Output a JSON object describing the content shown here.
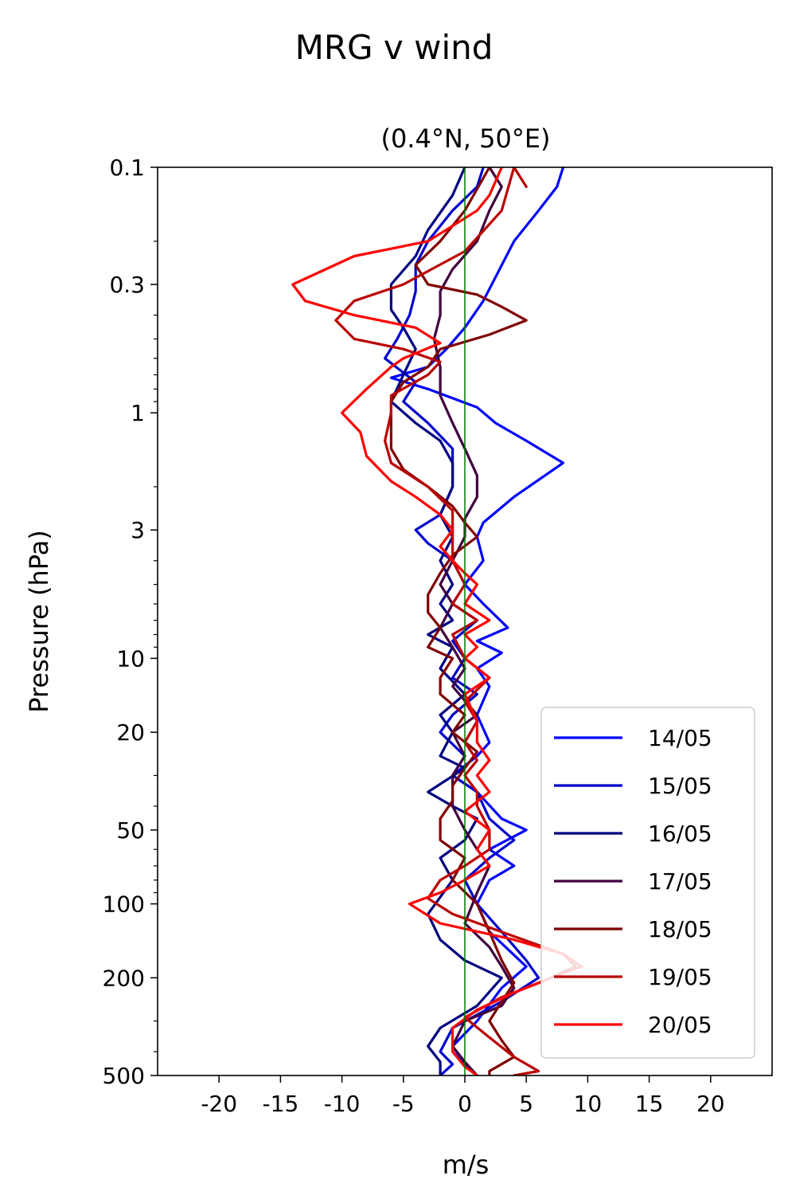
{
  "chart_data": {
    "type": "line",
    "title": "MRG v wind",
    "subtitle": "(0.4°N, 50°E)",
    "xlabel": "m/s",
    "ylabel": "Pressure (hPa)",
    "xlim": [
      -25,
      25
    ],
    "ylim": [
      500,
      0.1
    ],
    "yscale": "log",
    "x_ticks": [
      -20,
      -15,
      -10,
      -5,
      0,
      5,
      10,
      15,
      20
    ],
    "x_tick_labels": [
      "-20",
      "-15",
      "-10",
      "-5",
      "0",
      "5",
      "10",
      "15",
      "20"
    ],
    "y_ticks": [
      0.1,
      0.3,
      1,
      3,
      10,
      20,
      50,
      100,
      200,
      500
    ],
    "y_tick_labels": [
      "0.1",
      "0.3",
      "1",
      "3",
      "10",
      "20",
      "50",
      "100",
      "200",
      "500"
    ],
    "zero_line": {
      "x": 0,
      "color": "#007a00"
    },
    "grid": false,
    "legend_position": "lower-right",
    "series": [
      {
        "name": "14/05",
        "color": "#0000ff",
        "points": [
          [
            8,
            0.1
          ],
          [
            7.5,
            0.12
          ],
          [
            6,
            0.15
          ],
          [
            4,
            0.2
          ],
          [
            2.5,
            0.28
          ],
          [
            1.5,
            0.35
          ],
          [
            0,
            0.45
          ],
          [
            -1.5,
            0.55
          ],
          [
            -3,
            0.65
          ],
          [
            -6,
            0.72
          ],
          [
            -3,
            0.8
          ],
          [
            1,
            0.95
          ],
          [
            2.5,
            1.1
          ],
          [
            5,
            1.3
          ],
          [
            8,
            1.6
          ],
          [
            4,
            2.2
          ],
          [
            1.5,
            2.8
          ],
          [
            1,
            3.2
          ],
          [
            1.5,
            4
          ],
          [
            0,
            5
          ],
          [
            1.5,
            6
          ],
          [
            3.5,
            7.5
          ],
          [
            1,
            8.5
          ],
          [
            3,
            9.5
          ],
          [
            1,
            11
          ],
          [
            2,
            13
          ],
          [
            1,
            17
          ],
          [
            2,
            22
          ],
          [
            1,
            25
          ],
          [
            -1,
            30
          ],
          [
            1,
            35
          ],
          [
            3,
            45
          ],
          [
            5,
            50
          ],
          [
            2,
            60
          ],
          [
            4,
            70
          ],
          [
            2,
            80
          ],
          [
            1,
            100
          ],
          [
            2,
            130
          ],
          [
            5,
            180
          ],
          [
            3,
            220
          ],
          [
            1,
            300
          ],
          [
            -1,
            380
          ],
          [
            0,
            450
          ],
          [
            1,
            500
          ]
        ]
      },
      {
        "name": "15/05",
        "color": "#0000cc",
        "points": [
          [
            1.5,
            0.1
          ],
          [
            1,
            0.12
          ],
          [
            -1,
            0.15
          ],
          [
            -3,
            0.2
          ],
          [
            -4,
            0.25
          ],
          [
            -4,
            0.32
          ],
          [
            -4.5,
            0.4
          ],
          [
            -5.5,
            0.5
          ],
          [
            -6.5,
            0.6
          ],
          [
            -4,
            0.75
          ],
          [
            -5,
            0.9
          ],
          [
            -3,
            1.1
          ],
          [
            -1,
            1.4
          ],
          [
            -1,
            2
          ],
          [
            -2,
            2.6
          ],
          [
            -4,
            3
          ],
          [
            -3,
            3.4
          ],
          [
            -1,
            4
          ],
          [
            0,
            5
          ],
          [
            -1,
            6
          ],
          [
            1,
            7
          ],
          [
            -1,
            8.5
          ],
          [
            0,
            10
          ],
          [
            -1,
            12
          ],
          [
            1,
            14
          ],
          [
            -1,
            17
          ],
          [
            -2,
            20
          ],
          [
            0,
            25
          ],
          [
            -1,
            30
          ],
          [
            1,
            35
          ],
          [
            2,
            45
          ],
          [
            4,
            55
          ],
          [
            2,
            65
          ],
          [
            0,
            80
          ],
          [
            1,
            100
          ],
          [
            3,
            130
          ],
          [
            5,
            170
          ],
          [
            6,
            200
          ],
          [
            3,
            250
          ],
          [
            -1,
            320
          ],
          [
            -2,
            400
          ],
          [
            -1,
            450
          ],
          [
            -2,
            500
          ]
        ]
      },
      {
        "name": "16/05",
        "color": "#000080",
        "points": [
          [
            0,
            0.1
          ],
          [
            -1,
            0.13
          ],
          [
            -3,
            0.18
          ],
          [
            -4,
            0.23
          ],
          [
            -6,
            0.3
          ],
          [
            -6,
            0.38
          ],
          [
            -5,
            0.45
          ],
          [
            -4,
            0.55
          ],
          [
            -5,
            0.7
          ],
          [
            -6,
            0.9
          ],
          [
            -4,
            1.1
          ],
          [
            -2,
            1.3
          ],
          [
            -1,
            1.6
          ],
          [
            -1,
            2
          ],
          [
            -2,
            2.6
          ],
          [
            -1,
            3.2
          ],
          [
            -2,
            4
          ],
          [
            -1,
            5
          ],
          [
            -2,
            6
          ],
          [
            -1,
            7
          ],
          [
            -3,
            8
          ],
          [
            -1,
            9
          ],
          [
            -2,
            11
          ],
          [
            0,
            14
          ],
          [
            -2,
            17
          ],
          [
            -1,
            20
          ],
          [
            -2,
            25
          ],
          [
            0,
            28
          ],
          [
            -3,
            35
          ],
          [
            -1,
            40
          ],
          [
            1,
            45
          ],
          [
            0,
            55
          ],
          [
            -2,
            65
          ],
          [
            -1,
            80
          ],
          [
            -3,
            110
          ],
          [
            -2,
            140
          ],
          [
            0,
            170
          ],
          [
            3,
            200
          ],
          [
            1,
            260
          ],
          [
            -2,
            320
          ],
          [
            -3,
            380
          ],
          [
            -2,
            440
          ],
          [
            -2,
            500
          ]
        ]
      },
      {
        "name": "17/05",
        "color": "#400040",
        "points": [
          [
            2,
            0.1
          ],
          [
            3,
            0.12
          ],
          [
            2,
            0.15
          ],
          [
            1,
            0.2
          ],
          [
            -1,
            0.26
          ],
          [
            -2,
            0.32
          ],
          [
            -2,
            0.4
          ],
          [
            -2.5,
            0.5
          ],
          [
            -2,
            0.65
          ],
          [
            -2,
            0.85
          ],
          [
            -1,
            1.1
          ],
          [
            0,
            1.4
          ],
          [
            1,
            1.8
          ],
          [
            1,
            2.2
          ],
          [
            0,
            2.7
          ],
          [
            0,
            3.2
          ],
          [
            -1,
            4
          ],
          [
            -2,
            5
          ],
          [
            -1,
            6
          ],
          [
            -2,
            7.5
          ],
          [
            -1,
            9
          ],
          [
            0,
            11
          ],
          [
            -1,
            13
          ],
          [
            1,
            17
          ],
          [
            -1,
            20
          ],
          [
            0,
            25
          ],
          [
            -1,
            30
          ],
          [
            -1,
            40
          ],
          [
            0,
            50
          ],
          [
            1,
            60
          ],
          [
            2,
            70
          ],
          [
            1,
            90
          ],
          [
            0,
            120
          ],
          [
            2,
            150
          ],
          [
            3,
            180
          ],
          [
            4,
            220
          ],
          [
            3,
            260
          ],
          [
            0,
            300
          ],
          [
            -1,
            380
          ],
          [
            0,
            440
          ],
          [
            1,
            500
          ]
        ]
      },
      {
        "name": "18/05",
        "color": "#800000",
        "points": [
          [
            2,
            0.1
          ],
          [
            0,
            0.15
          ],
          [
            -2,
            0.2
          ],
          [
            -4,
            0.25
          ],
          [
            -3,
            0.3
          ],
          [
            1,
            0.33
          ],
          [
            3,
            0.37
          ],
          [
            5,
            0.42
          ],
          [
            2,
            0.48
          ],
          [
            -2,
            0.55
          ],
          [
            -3,
            0.65
          ],
          [
            -5,
            0.75
          ],
          [
            -6,
            0.9
          ],
          [
            -6,
            1.1
          ],
          [
            -6,
            1.4
          ],
          [
            -5,
            1.7
          ],
          [
            -3,
            2
          ],
          [
            -1,
            2.4
          ],
          [
            0,
            2.8
          ],
          [
            1,
            3.2
          ],
          [
            -1,
            3.8
          ],
          [
            -2,
            4.5
          ],
          [
            -3,
            5.5
          ],
          [
            -3,
            6.5
          ],
          [
            -2,
            7.5
          ],
          [
            -3,
            9
          ],
          [
            -1,
            10
          ],
          [
            -2,
            12
          ],
          [
            -2,
            14
          ],
          [
            0,
            17
          ],
          [
            -1,
            20
          ],
          [
            1,
            24
          ],
          [
            0,
            28
          ],
          [
            -1,
            33
          ],
          [
            -1,
            38
          ],
          [
            -2,
            45
          ],
          [
            -2,
            55
          ],
          [
            0,
            65
          ],
          [
            -1,
            80
          ],
          [
            1,
            100
          ],
          [
            2,
            130
          ],
          [
            3,
            170
          ],
          [
            4,
            210
          ],
          [
            3,
            250
          ],
          [
            2,
            300
          ],
          [
            3,
            360
          ],
          [
            4,
            420
          ],
          [
            2,
            480
          ],
          [
            2,
            500
          ]
        ]
      },
      {
        "name": "19/05",
        "color": "#bb0000",
        "points": [
          [
            5,
            0.12
          ],
          [
            4,
            0.1
          ],
          [
            3,
            0.15
          ],
          [
            0,
            0.22
          ],
          [
            -5,
            0.3
          ],
          [
            -9,
            0.35
          ],
          [
            -10.5,
            0.42
          ],
          [
            -9,
            0.5
          ],
          [
            -5,
            0.55
          ],
          [
            -2,
            0.62
          ],
          [
            -3,
            0.7
          ],
          [
            -6,
            0.85
          ],
          [
            -6,
            1
          ],
          [
            -6.5,
            1.3
          ],
          [
            -6,
            1.6
          ],
          [
            -3,
            2
          ],
          [
            -1,
            2.5
          ],
          [
            -1,
            3
          ],
          [
            -1,
            4
          ],
          [
            0,
            5
          ],
          [
            -1,
            6
          ],
          [
            1,
            7
          ],
          [
            -1,
            8
          ],
          [
            0,
            10
          ],
          [
            2,
            12
          ],
          [
            0,
            15
          ],
          [
            1,
            18
          ],
          [
            0,
            22
          ],
          [
            1,
            26
          ],
          [
            0,
            30
          ],
          [
            1,
            35
          ],
          [
            1,
            40
          ],
          [
            2,
            50
          ],
          [
            2,
            60
          ],
          [
            0,
            70
          ],
          [
            -2,
            80
          ],
          [
            -3,
            95
          ],
          [
            -1,
            110
          ],
          [
            3,
            130
          ],
          [
            8,
            160
          ],
          [
            9,
            180
          ],
          [
            6,
            210
          ],
          [
            3,
            240
          ],
          [
            0,
            290
          ],
          [
            2,
            350
          ],
          [
            4,
            420
          ],
          [
            6,
            480
          ],
          [
            4,
            500
          ]
        ]
      },
      {
        "name": "20/05",
        "color": "#ff0000",
        "points": [
          [
            3,
            0.1
          ],
          [
            2,
            0.13
          ],
          [
            1,
            0.15
          ],
          [
            -3,
            0.2
          ],
          [
            -9,
            0.23
          ],
          [
            -14,
            0.3
          ],
          [
            -13,
            0.35
          ],
          [
            -9,
            0.4
          ],
          [
            -4,
            0.45
          ],
          [
            -2,
            0.52
          ],
          [
            -5,
            0.6
          ],
          [
            -6,
            0.65
          ],
          [
            -8,
            0.8
          ],
          [
            -10,
            1
          ],
          [
            -8.5,
            1.2
          ],
          [
            -8,
            1.5
          ],
          [
            -6,
            1.9
          ],
          [
            -4,
            2.2
          ],
          [
            -2,
            2.6
          ],
          [
            -1,
            3
          ],
          [
            -2,
            3.5
          ],
          [
            -1,
            4
          ],
          [
            0,
            4.5
          ],
          [
            1,
            5
          ],
          [
            0,
            6
          ],
          [
            2,
            7
          ],
          [
            0,
            8
          ],
          [
            1,
            9
          ],
          [
            0,
            10
          ],
          [
            2,
            12
          ],
          [
            0,
            14
          ],
          [
            1,
            18
          ],
          [
            1,
            22
          ],
          [
            2,
            26
          ],
          [
            1,
            30
          ],
          [
            2,
            35
          ],
          [
            0,
            42
          ],
          [
            2,
            50
          ],
          [
            1,
            60
          ],
          [
            2,
            70
          ],
          [
            0,
            80
          ],
          [
            -2,
            90
          ],
          [
            -4.5,
            100
          ],
          [
            -2,
            120
          ],
          [
            4,
            140
          ],
          [
            8,
            160
          ],
          [
            9.5,
            180
          ],
          [
            7,
            200
          ],
          [
            4,
            230
          ],
          [
            1,
            270
          ],
          [
            -1,
            320
          ],
          [
            -1,
            400
          ],
          [
            0,
            460
          ],
          [
            1,
            500
          ]
        ]
      }
    ]
  }
}
